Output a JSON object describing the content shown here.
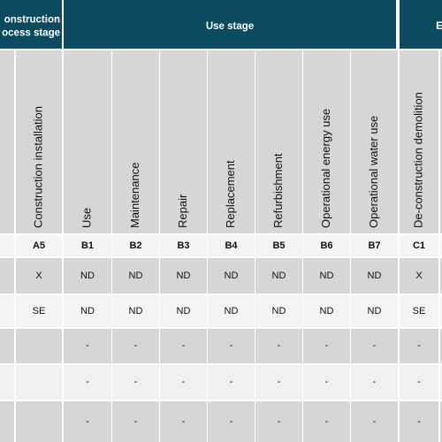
{
  "header": {
    "groups": [
      [
        "onstruction",
        "ocess stage"
      ],
      [
        "Use stage"
      ],
      [
        "E"
      ]
    ]
  },
  "columns": [
    {
      "name": "Construction installation",
      "code": "A5",
      "row1": "X",
      "row2": "SE"
    },
    {
      "name": "Use",
      "code": "B1",
      "row1": "ND",
      "row2": "ND"
    },
    {
      "name": "Maintenance",
      "code": "B2",
      "row1": "ND",
      "row2": "ND"
    },
    {
      "name": "Repair",
      "code": "B3",
      "row1": "ND",
      "row2": "ND"
    },
    {
      "name": "Replacement",
      "code": "B4",
      "row1": "ND",
      "row2": "ND"
    },
    {
      "name": "Refurbishment",
      "code": "B5",
      "row1": "ND",
      "row2": "ND"
    },
    {
      "name": "Operational energy use",
      "code": "B6",
      "row1": "ND",
      "row2": "ND"
    },
    {
      "name": "Operational water use",
      "code": "B7",
      "row1": "ND",
      "row2": "ND"
    },
    {
      "name": "De-construction demolition",
      "code": "C1",
      "row1": "X",
      "row2": "SE"
    }
  ],
  "dash_rows": [
    [
      "-",
      "-",
      "-",
      "-",
      "-",
      "-",
      "-",
      "-"
    ],
    [
      "-",
      "-",
      "-",
      "-",
      "-",
      "-",
      "-",
      "-"
    ],
    [
      "-",
      "-",
      "-",
      "-",
      "-",
      "-",
      "-",
      "-"
    ]
  ]
}
